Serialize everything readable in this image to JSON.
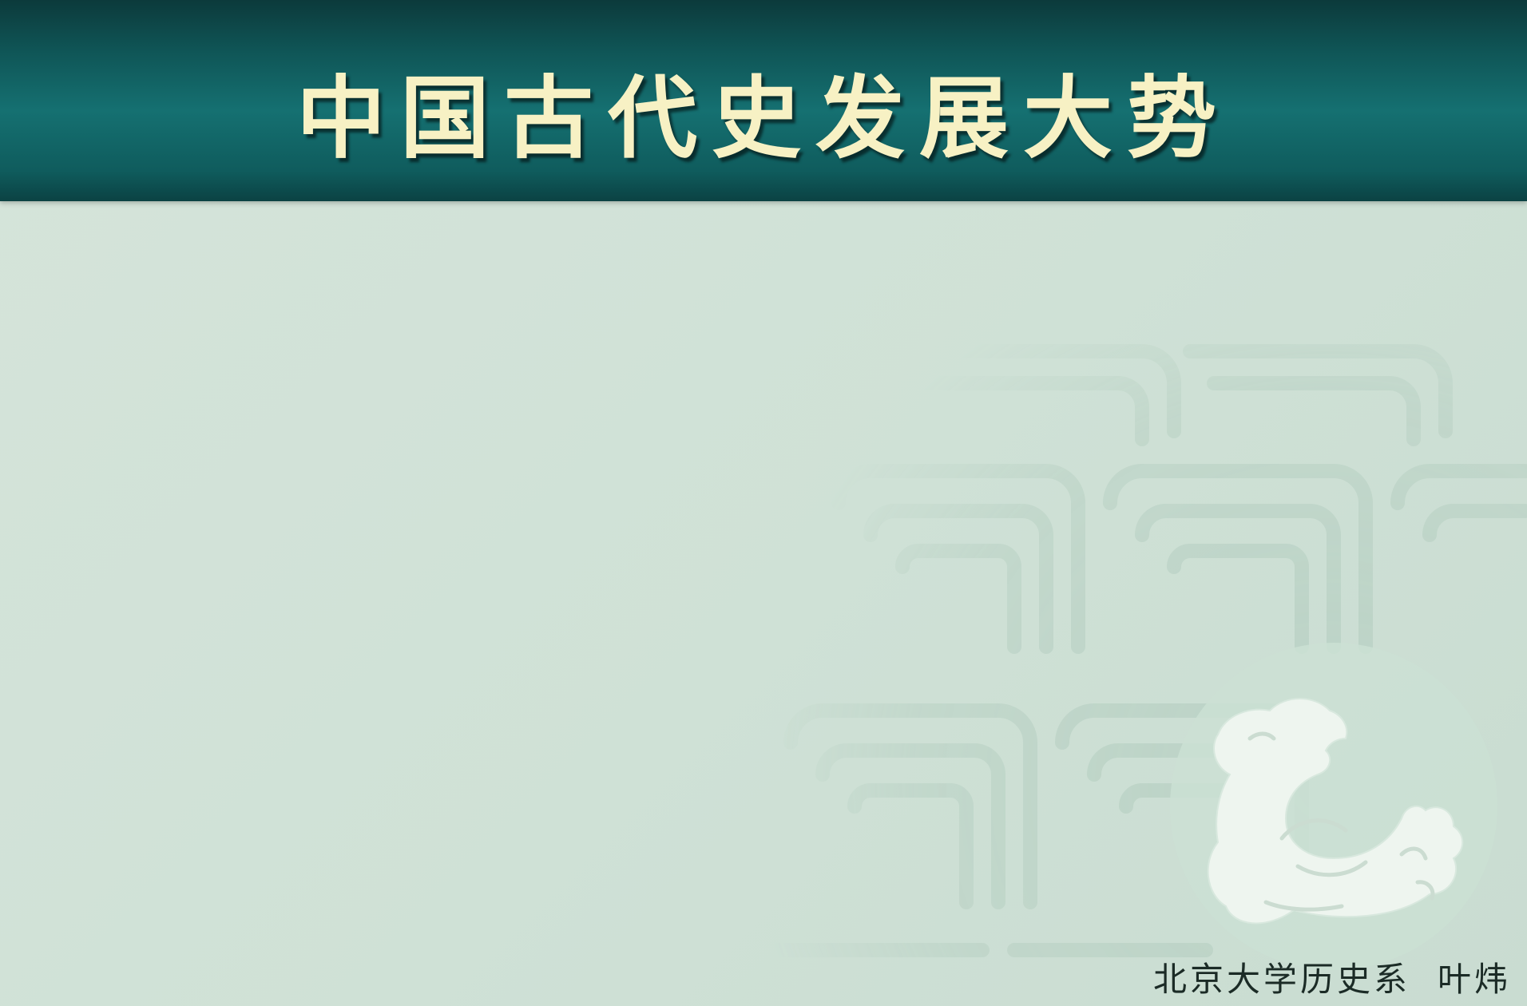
{
  "slide": {
    "title": "中国古代史发展大势",
    "credit": {
      "institution": "北京大学历史系",
      "author": "叶炜"
    },
    "decoration": {
      "pattern_icon": "cloud-scroll-pattern",
      "seal_icon": "jade-dragon-icon"
    },
    "colors": {
      "header": "#157071",
      "title_text": "#f7f1c4",
      "background": "#d3e3d8"
    }
  }
}
